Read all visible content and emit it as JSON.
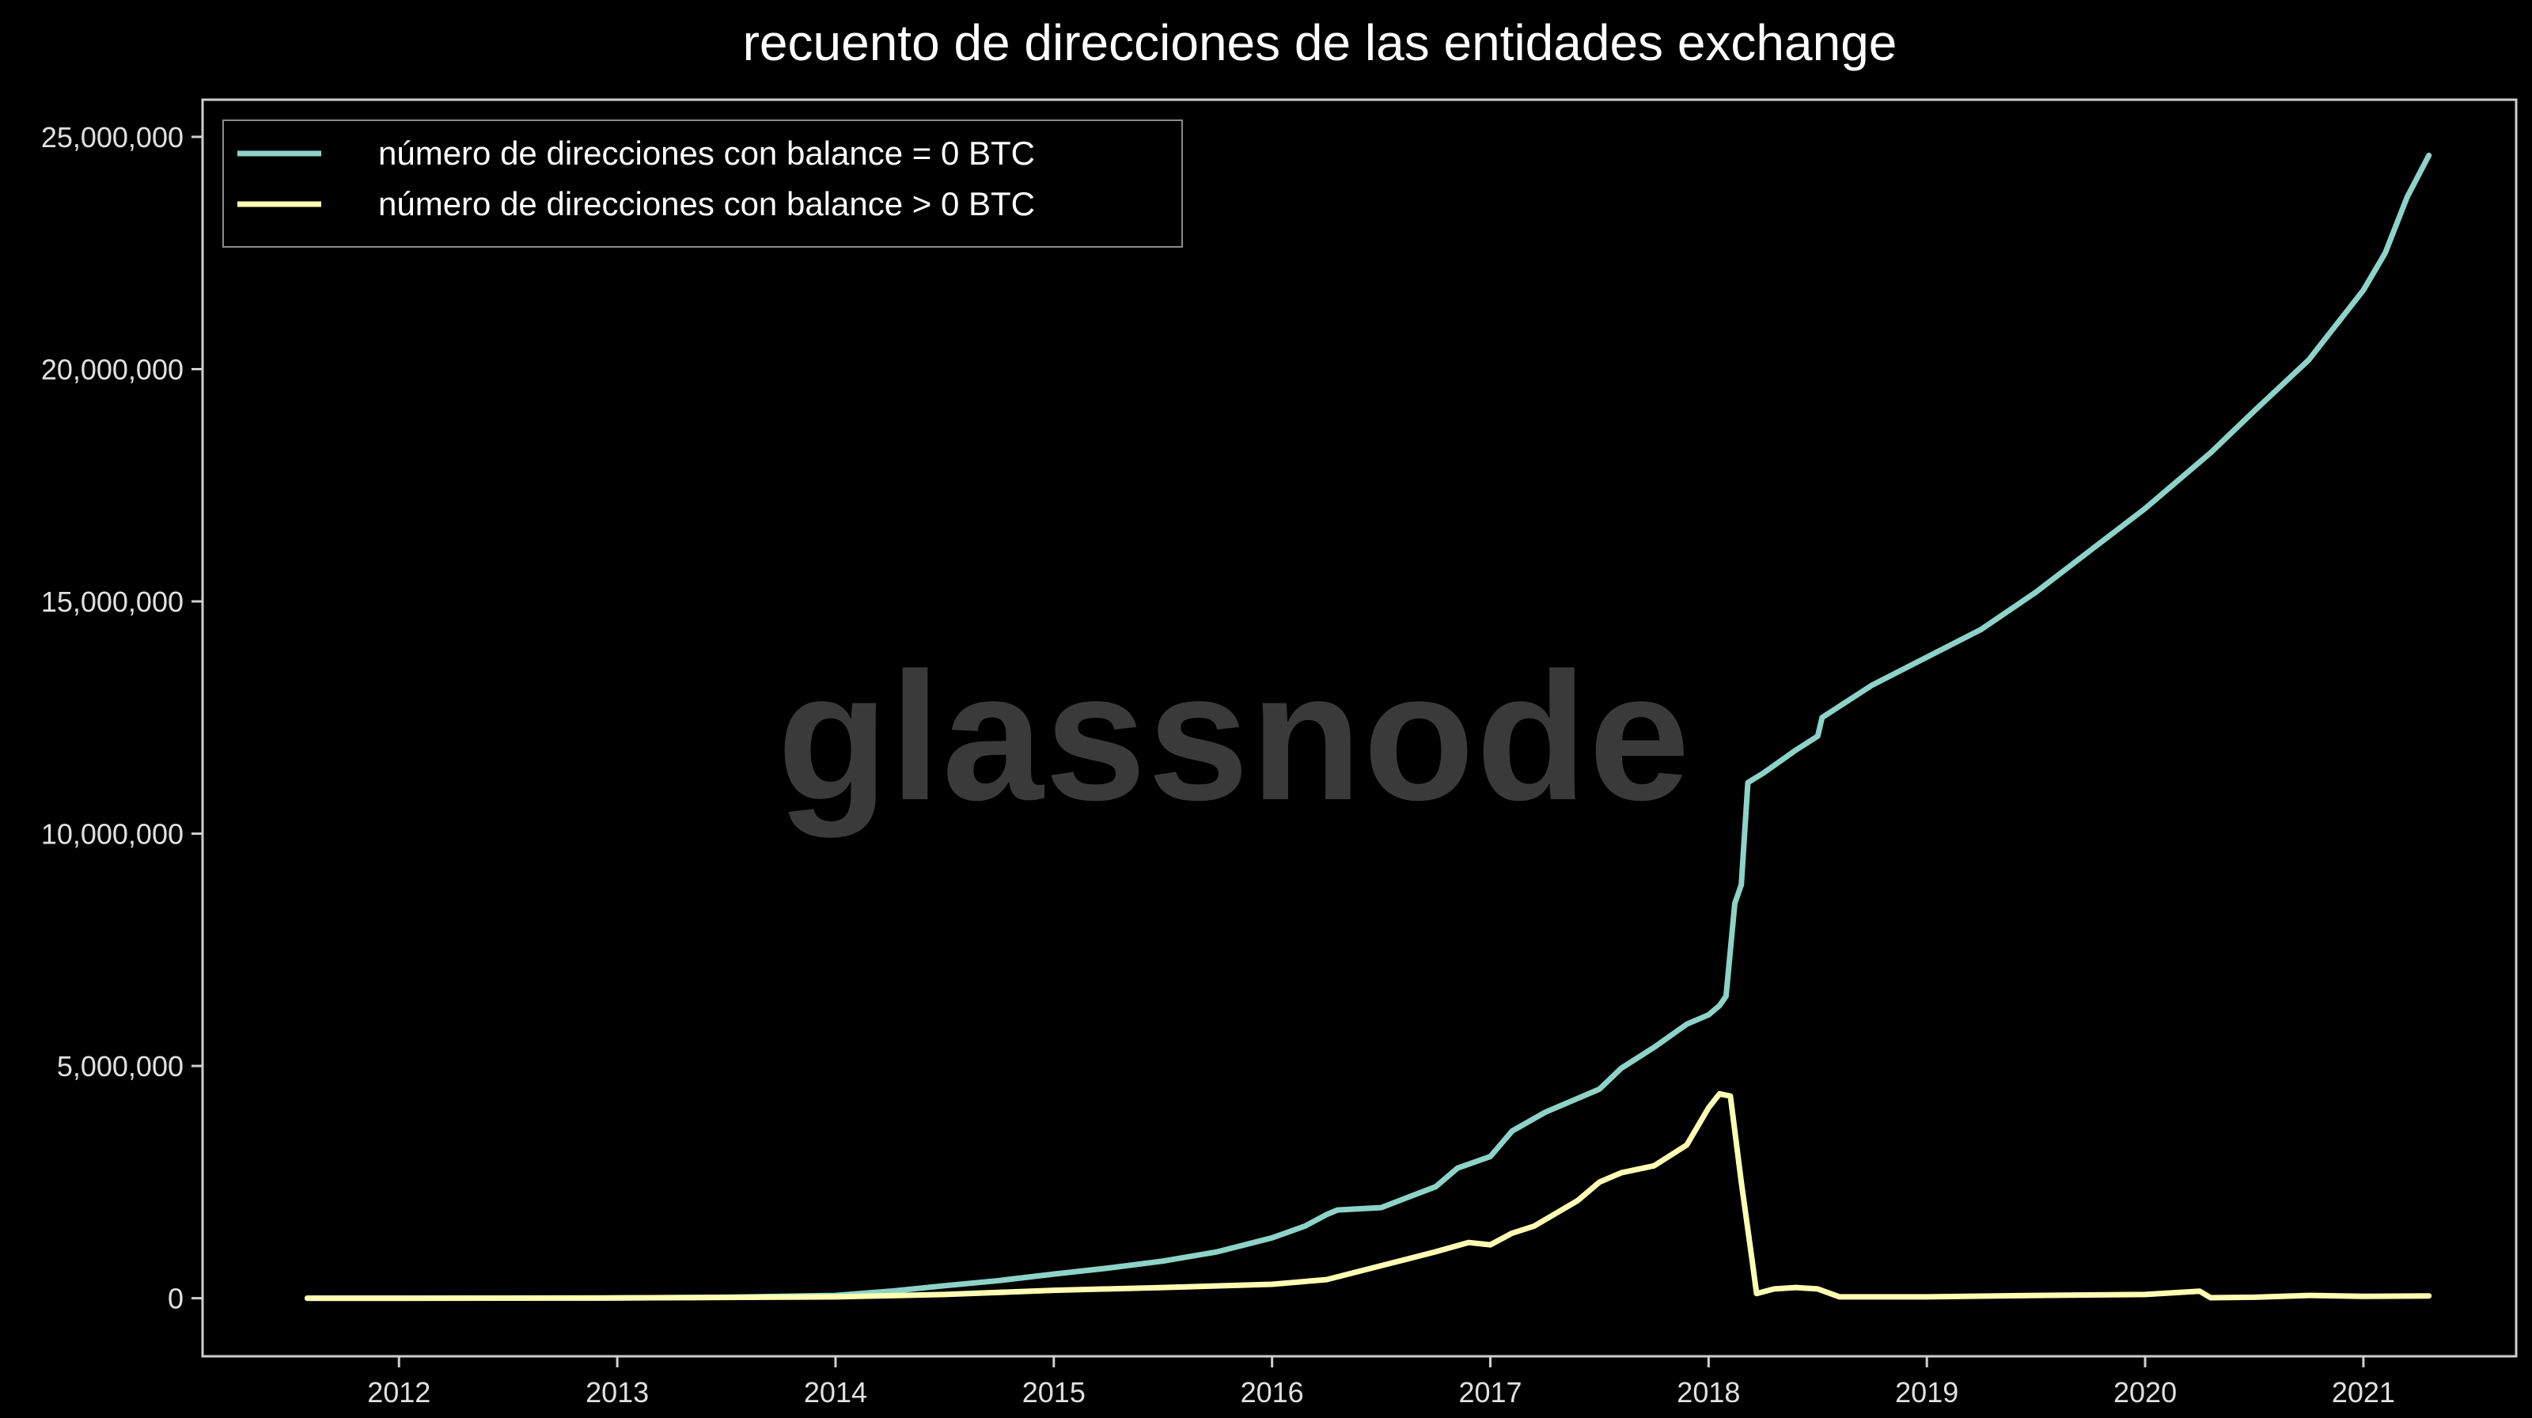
{
  "chart_data": {
    "type": "line",
    "title": "recuento de direcciones de las entidades exchange",
    "xlabel": "",
    "ylabel": "",
    "xlim": [
      2011.1,
      2021.7
    ],
    "ylim": [
      -1250000,
      25800000
    ],
    "x_ticks": [
      2012,
      2013,
      2014,
      2015,
      2016,
      2017,
      2018,
      2019,
      2020,
      2021
    ],
    "x_tick_labels": [
      "2012",
      "2013",
      "2014",
      "2015",
      "2016",
      "2017",
      "2018",
      "2019",
      "2020",
      "2021"
    ],
    "y_ticks": [
      0,
      5000000,
      10000000,
      15000000,
      20000000,
      25000000
    ],
    "y_tick_labels": [
      "0",
      "5,000,000",
      "10,000,000",
      "15,000,000",
      "20,000,000",
      "25,000,000"
    ],
    "grid": false,
    "legend_position": "top-left",
    "watermark": "glassnode",
    "series": [
      {
        "name": "número de direcciones con balance = 0 BTC",
        "color": "#8dd3c7",
        "points": [
          [
            2011.58,
            0
          ],
          [
            2012.0,
            0
          ],
          [
            2013.0,
            5000
          ],
          [
            2013.5,
            20000
          ],
          [
            2014.0,
            60000
          ],
          [
            2014.25,
            150000
          ],
          [
            2014.5,
            270000
          ],
          [
            2014.75,
            380000
          ],
          [
            2015.0,
            520000
          ],
          [
            2015.25,
            650000
          ],
          [
            2015.5,
            800000
          ],
          [
            2015.75,
            1000000
          ],
          [
            2016.0,
            1300000
          ],
          [
            2016.15,
            1550000
          ],
          [
            2016.25,
            1800000
          ],
          [
            2016.3,
            1900000
          ],
          [
            2016.5,
            1950000
          ],
          [
            2016.75,
            2400000
          ],
          [
            2016.85,
            2800000
          ],
          [
            2017.0,
            3050000
          ],
          [
            2017.1,
            3600000
          ],
          [
            2017.25,
            4000000
          ],
          [
            2017.5,
            4500000
          ],
          [
            2017.6,
            4950000
          ],
          [
            2017.75,
            5400000
          ],
          [
            2017.9,
            5900000
          ],
          [
            2018.0,
            6100000
          ],
          [
            2018.05,
            6300000
          ],
          [
            2018.08,
            6500000
          ],
          [
            2018.12,
            8500000
          ],
          [
            2018.15,
            8900000
          ],
          [
            2018.18,
            11100000
          ],
          [
            2018.25,
            11300000
          ],
          [
            2018.4,
            11800000
          ],
          [
            2018.5,
            12100000
          ],
          [
            2018.52,
            12500000
          ],
          [
            2018.75,
            13200000
          ],
          [
            2019.0,
            13800000
          ],
          [
            2019.25,
            14400000
          ],
          [
            2019.5,
            15200000
          ],
          [
            2019.75,
            16100000
          ],
          [
            2020.0,
            17000000
          ],
          [
            2020.25,
            18000000
          ],
          [
            2020.3,
            18200000
          ],
          [
            2020.5,
            19100000
          ],
          [
            2020.75,
            20200000
          ],
          [
            2021.0,
            21700000
          ],
          [
            2021.1,
            22500000
          ],
          [
            2021.2,
            23700000
          ],
          [
            2021.3,
            24600000
          ]
        ]
      },
      {
        "name": "número de direcciones con balance > 0 BTC",
        "color": "#ffffb3",
        "points": [
          [
            2011.58,
            0
          ],
          [
            2012.0,
            0
          ],
          [
            2013.0,
            5000
          ],
          [
            2014.0,
            30000
          ],
          [
            2014.5,
            80000
          ],
          [
            2015.0,
            170000
          ],
          [
            2015.5,
            230000
          ],
          [
            2016.0,
            300000
          ],
          [
            2016.25,
            400000
          ],
          [
            2016.5,
            700000
          ],
          [
            2016.75,
            1000000
          ],
          [
            2016.9,
            1200000
          ],
          [
            2017.0,
            1150000
          ],
          [
            2017.1,
            1400000
          ],
          [
            2017.2,
            1550000
          ],
          [
            2017.4,
            2100000
          ],
          [
            2017.5,
            2500000
          ],
          [
            2017.6,
            2700000
          ],
          [
            2017.75,
            2850000
          ],
          [
            2017.9,
            3300000
          ],
          [
            2018.0,
            4100000
          ],
          [
            2018.05,
            4400000
          ],
          [
            2018.1,
            4350000
          ],
          [
            2018.15,
            2500000
          ],
          [
            2018.2,
            800000
          ],
          [
            2018.22,
            100000
          ],
          [
            2018.3,
            200000
          ],
          [
            2018.4,
            230000
          ],
          [
            2018.5,
            200000
          ],
          [
            2018.6,
            30000
          ],
          [
            2019.0,
            30000
          ],
          [
            2019.5,
            60000
          ],
          [
            2020.0,
            80000
          ],
          [
            2020.25,
            150000
          ],
          [
            2020.3,
            10000
          ],
          [
            2020.5,
            20000
          ],
          [
            2020.75,
            60000
          ],
          [
            2021.0,
            40000
          ],
          [
            2021.3,
            50000
          ]
        ]
      }
    ]
  }
}
